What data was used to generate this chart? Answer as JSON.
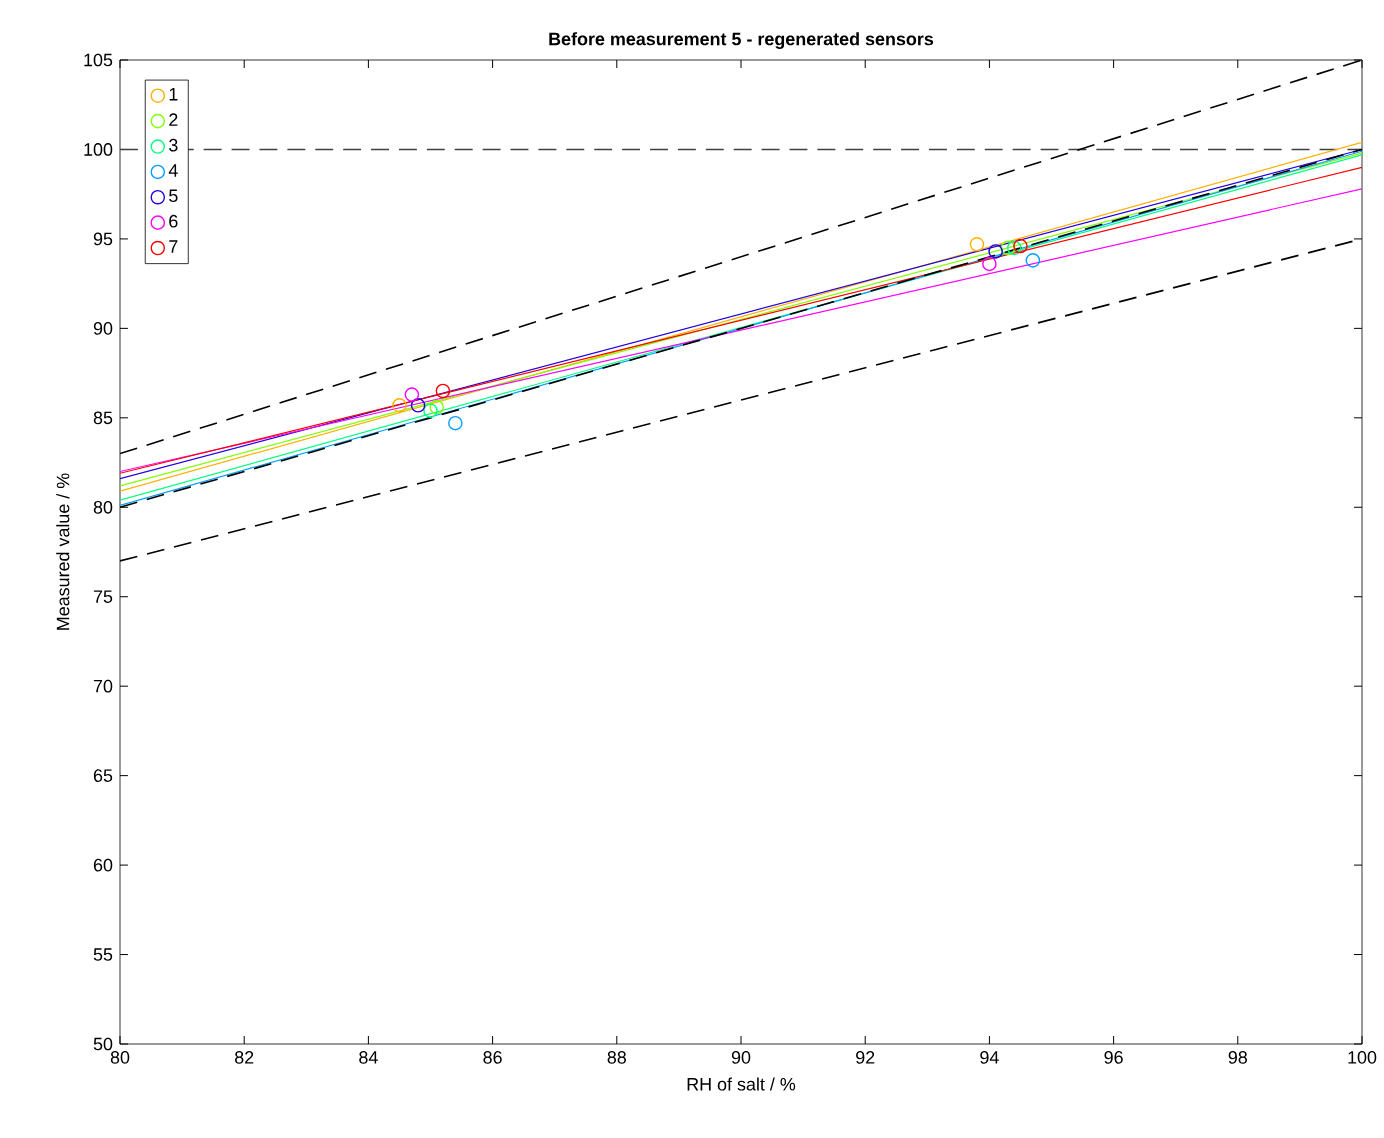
{
  "chart_data": {
    "type": "scatter",
    "title": "Before measurement 5 - regenerated sensors",
    "xlabel": "RH of salt / %",
    "ylabel": "Measured value / %",
    "xlim": [
      80,
      100
    ],
    "ylim": [
      50,
      105
    ],
    "xticks": [
      80,
      82,
      84,
      86,
      88,
      90,
      92,
      94,
      96,
      98,
      100
    ],
    "yticks": [
      50,
      55,
      60,
      65,
      70,
      75,
      80,
      85,
      90,
      95,
      100,
      105
    ],
    "grid": false,
    "legend": "top left",
    "marker": "circle",
    "ref_lines": [
      {
        "axis": "y",
        "value": 100,
        "color": "#404040",
        "line_style": "dashed"
      }
    ],
    "series": [
      {
        "type": "line",
        "color": "#ffb000",
        "x": [
          80,
          100
        ],
        "values": [
          80.9,
          100.4
        ],
        "marker": "none"
      },
      {
        "type": "line",
        "color": "#80ff00",
        "x": [
          80,
          100
        ],
        "values": [
          81.2,
          99.8
        ],
        "marker": "none"
      },
      {
        "type": "line",
        "color": "#00ff80",
        "x": [
          80,
          100
        ],
        "values": [
          80.4,
          99.7
        ],
        "marker": "none"
      },
      {
        "type": "line",
        "color": "#00a0ff",
        "x": [
          80,
          100
        ],
        "values": [
          80.1,
          99.9
        ],
        "marker": "none"
      },
      {
        "type": "line",
        "color": "#2000e0",
        "x": [
          80,
          100
        ],
        "values": [
          81.6,
          100.0
        ],
        "marker": "none"
      },
      {
        "type": "line",
        "color": "#ff00ff",
        "x": [
          80,
          100
        ],
        "values": [
          82.0,
          97.8
        ],
        "marker": "none"
      },
      {
        "type": "line",
        "color": "#ff0000",
        "x": [
          80,
          100
        ],
        "values": [
          81.9,
          99.0
        ],
        "marker": "none"
      },
      {
        "type": "line",
        "color": "#000000",
        "x": [
          80,
          100
        ],
        "values": [
          80,
          100
        ],
        "marker": "none",
        "line_style": "dashed"
      },
      {
        "type": "line",
        "color": "#000000",
        "x": [
          80,
          100
        ],
        "values": [
          83,
          105
        ],
        "marker": "none",
        "line_style": "dashed"
      },
      {
        "type": "line",
        "color": "#000000",
        "x": [
          80,
          100
        ],
        "values": [
          77,
          95
        ],
        "marker": "none",
        "line_style": "dashed"
      },
      {
        "name": "1",
        "color": "#ffb000",
        "x": [
          84.5,
          93.8
        ],
        "values": [
          85.7,
          94.7
        ]
      },
      {
        "name": "2",
        "color": "#80ff00",
        "x": [
          85.1,
          94.3
        ],
        "values": [
          85.6,
          94.5
        ]
      },
      {
        "name": "3",
        "color": "#00ff80",
        "x": [
          85.0,
          94.4
        ],
        "values": [
          85.4,
          94.5
        ]
      },
      {
        "name": "4",
        "color": "#00a0ff",
        "x": [
          85.4,
          94.7
        ],
        "values": [
          84.7,
          93.8
        ]
      },
      {
        "name": "5",
        "color": "#2000e0",
        "x": [
          84.8,
          94.1
        ],
        "values": [
          85.7,
          94.3
        ]
      },
      {
        "name": "6",
        "color": "#ff00ff",
        "x": [
          84.7,
          94.0
        ],
        "values": [
          86.3,
          93.6
        ]
      },
      {
        "name": "7",
        "color": "#ff0000",
        "x": [
          85.2,
          94.5
        ],
        "values": [
          86.5,
          94.6
        ]
      }
    ]
  }
}
